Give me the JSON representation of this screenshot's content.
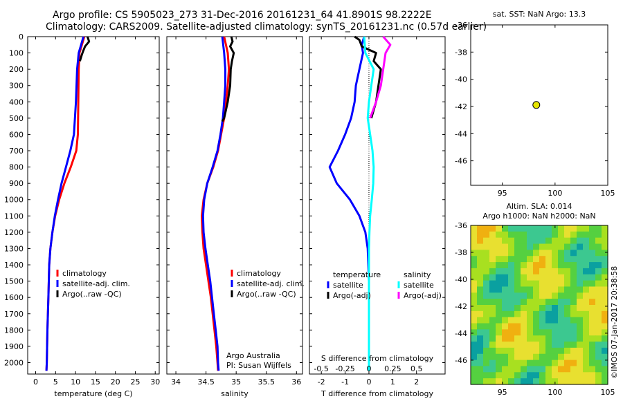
{
  "header": {
    "title_line1": "Argo profile: CS 5905023_273 31-Dec-2016 20161231_64 41.8901S 98.2222E",
    "title_line2": "Climatology: CARS2009. Satellite-adjusted climatology: synTS_20161231.nc (0.57d earlier)"
  },
  "footer": {
    "vertical_stamp": "©IMOS 07-Jan-2017 20:38:58",
    "credit_line1": "Argo Australia",
    "credit_line2": "PI: Susan Wijffels"
  },
  "colors": {
    "climatology": "#ff0000",
    "satellite": "#0000ff",
    "argo": "#000000",
    "satellite_salinity": "#00ffff",
    "argo_salinity": "#ff00ff",
    "float_marker": "#e6e600"
  },
  "chart_data": [
    {
      "id": "temperature",
      "type": "line",
      "xlabel": "temperature (deg C)",
      "ylabel": "",
      "xlim": [
        -2,
        31
      ],
      "ylim": [
        2070,
        0
      ],
      "x_ticks": [
        "0",
        "5",
        "10",
        "15",
        "20",
        "25",
        "30"
      ],
      "x_tick_values": [
        0,
        5,
        10,
        15,
        20,
        25,
        30
      ],
      "y_ticks": [
        "0",
        "100",
        "200",
        "300",
        "400",
        "500",
        "600",
        "700",
        "800",
        "900",
        "1000",
        "1100",
        "1200",
        "1300",
        "1400",
        "1500",
        "1600",
        "1700",
        "1800",
        "1900",
        "2000"
      ],
      "y_tick_values": [
        0,
        100,
        200,
        300,
        400,
        500,
        600,
        700,
        800,
        900,
        1000,
        1100,
        1200,
        1300,
        1400,
        1500,
        1600,
        1700,
        1800,
        1900,
        2000
      ],
      "legend": {
        "placement": "lower-right",
        "entries": [
          "climatology",
          "satellite-adj. clim.",
          "Argo(..raw -QC)"
        ]
      },
      "series": [
        {
          "name": "climatology",
          "color": "#ff0000",
          "points": [
            [
              12.2,
              0
            ],
            [
              11.6,
              50
            ],
            [
              11.0,
              100
            ],
            [
              10.8,
              200
            ],
            [
              10.7,
              400
            ],
            [
              10.6,
              600
            ],
            [
              10.2,
              700
            ],
            [
              8.8,
              800
            ],
            [
              7.2,
              900
            ],
            [
              5.9,
              1000
            ],
            [
              4.9,
              1100
            ],
            [
              4.2,
              1200
            ],
            [
              3.7,
              1300
            ],
            [
              3.4,
              1400
            ],
            [
              3.2,
              1600
            ],
            [
              2.95,
              1800
            ],
            [
              2.8,
              2000
            ],
            [
              2.7,
              2050
            ]
          ]
        },
        {
          "name": "satellite-adj. clim.",
          "color": "#0000ff",
          "points": [
            [
              12.0,
              0
            ],
            [
              11.4,
              50
            ],
            [
              10.8,
              100
            ],
            [
              10.4,
              200
            ],
            [
              10.1,
              400
            ],
            [
              9.6,
              600
            ],
            [
              8.7,
              700
            ],
            [
              7.6,
              800
            ],
            [
              6.5,
              900
            ],
            [
              5.6,
              1000
            ],
            [
              4.8,
              1100
            ],
            [
              4.2,
              1200
            ],
            [
              3.7,
              1300
            ],
            [
              3.4,
              1400
            ],
            [
              3.2,
              1600
            ],
            [
              2.95,
              1800
            ],
            [
              2.8,
              2000
            ],
            [
              2.7,
              2050
            ]
          ]
        },
        {
          "name": "Argo(..raw -QC)",
          "color": "#000000",
          "points": [
            [
              13.0,
              0
            ],
            [
              13.4,
              30
            ],
            [
              12.4,
              60
            ],
            [
              11.9,
              90
            ],
            [
              11.6,
              110
            ],
            [
              11.1,
              150
            ]
          ]
        }
      ]
    },
    {
      "id": "salinity",
      "type": "line",
      "xlabel": "salinity",
      "ylabel": "",
      "xlim": [
        33.85,
        36.1
      ],
      "ylim": [
        2070,
        0
      ],
      "x_ticks": [
        "34",
        "34.5",
        "35",
        "35.5",
        "36"
      ],
      "x_tick_values": [
        34,
        34.5,
        35,
        35.5,
        36
      ],
      "legend": {
        "placement": "lower-right",
        "entries": [
          "climatology",
          "satellite-adj. clim.",
          "Argo(..raw -QC)"
        ]
      },
      "series": [
        {
          "name": "climatology",
          "color": "#ff0000",
          "points": [
            [
              34.8,
              0
            ],
            [
              34.86,
              100
            ],
            [
              34.88,
              200
            ],
            [
              34.86,
              300
            ],
            [
              34.83,
              400
            ],
            [
              34.8,
              500
            ],
            [
              34.75,
              600
            ],
            [
              34.7,
              700
            ],
            [
              34.62,
              800
            ],
            [
              34.52,
              900
            ],
            [
              34.46,
              1000
            ],
            [
              34.43,
              1100
            ],
            [
              34.44,
              1200
            ],
            [
              34.46,
              1300
            ],
            [
              34.5,
              1400
            ],
            [
              34.54,
              1500
            ],
            [
              34.58,
              1600
            ],
            [
              34.61,
              1700
            ],
            [
              34.64,
              1800
            ],
            [
              34.67,
              1900
            ],
            [
              34.69,
              2000
            ],
            [
              34.7,
              2050
            ]
          ]
        },
        {
          "name": "satellite-adj. clim.",
          "color": "#0000ff",
          "points": [
            [
              34.77,
              0
            ],
            [
              34.8,
              100
            ],
            [
              34.82,
              200
            ],
            [
              34.82,
              300
            ],
            [
              34.8,
              400
            ],
            [
              34.78,
              500
            ],
            [
              34.74,
              600
            ],
            [
              34.69,
              700
            ],
            [
              34.61,
              800
            ],
            [
              34.52,
              900
            ],
            [
              34.47,
              1000
            ],
            [
              34.45,
              1100
            ],
            [
              34.46,
              1200
            ],
            [
              34.49,
              1300
            ],
            [
              34.53,
              1400
            ],
            [
              34.57,
              1500
            ],
            [
              34.6,
              1600
            ],
            [
              34.63,
              1700
            ],
            [
              34.66,
              1800
            ],
            [
              34.69,
              1900
            ],
            [
              34.7,
              2000
            ],
            [
              34.71,
              2050
            ]
          ]
        },
        {
          "name": "Argo(..raw -QC)",
          "color": "#000000",
          "points": [
            [
              34.92,
              0
            ],
            [
              34.94,
              30
            ],
            [
              34.9,
              60
            ],
            [
              34.96,
              100
            ],
            [
              34.93,
              150
            ],
            [
              34.91,
              200
            ],
            [
              34.9,
              300
            ],
            [
              34.86,
              400
            ],
            [
              34.8,
              500
            ],
            [
              34.77,
              520
            ]
          ]
        }
      ]
    },
    {
      "id": "difference",
      "type": "line",
      "xlabel": "T difference from climatology",
      "xlabel_top": "S difference from climatology",
      "xlim": [
        -2.5,
        3.2
      ],
      "ylim": [
        2070,
        0
      ],
      "x_ticks": [
        "-2",
        "-1",
        "0",
        "1",
        "2"
      ],
      "x_tick_values": [
        -2,
        -1,
        0,
        1,
        2
      ],
      "x_ticks_top": [
        "-0.5",
        "-0.25",
        "0",
        "0.25",
        "0.5"
      ],
      "x_tick_top_values": [
        -0.5,
        -0.25,
        0,
        0.25,
        0.5
      ],
      "legend": {
        "placement": "lower-right",
        "temperature_title": "temperature",
        "salinity_title": "salinity",
        "temperature_entries": [
          "satellite",
          "Argo(-adj)"
        ],
        "salinity_entries": [
          "satellite",
          "Argo(-adj)"
        ]
      },
      "series": [
        {
          "name": "satellite",
          "color": "#0000ff",
          "points": [
            [
              -0.2,
              0
            ],
            [
              -0.3,
              50
            ],
            [
              -0.25,
              100
            ],
            [
              -0.4,
              200
            ],
            [
              -0.55,
              300
            ],
            [
              -0.6,
              400
            ],
            [
              -0.75,
              500
            ],
            [
              -1.0,
              600
            ],
            [
              -1.3,
              700
            ],
            [
              -1.65,
              800
            ],
            [
              -1.35,
              900
            ],
            [
              -0.8,
              1000
            ],
            [
              -0.4,
              1100
            ],
            [
              -0.15,
              1200
            ],
            [
              -0.05,
              1300
            ],
            [
              0,
              1500
            ],
            [
              0,
              2050
            ]
          ]
        },
        {
          "name": "Argo(-adj)",
          "color": "#000000",
          "points": [
            [
              -0.6,
              0
            ],
            [
              -0.4,
              20
            ],
            [
              -0.3,
              60
            ],
            [
              0.3,
              100
            ],
            [
              0.2,
              150
            ],
            [
              0.5,
              200
            ],
            [
              0.4,
              300
            ],
            [
              0.3,
              400
            ],
            [
              0.1,
              500
            ]
          ]
        },
        {
          "name": "satellite",
          "color": "#00ffff",
          "points": [
            [
              -0.2,
              0
            ],
            [
              -0.15,
              100
            ],
            [
              0.2,
              200
            ],
            [
              0.1,
              300
            ],
            [
              0.0,
              400
            ],
            [
              -0.05,
              500
            ],
            [
              0.05,
              600
            ],
            [
              0.15,
              700
            ],
            [
              0.2,
              800
            ],
            [
              0.18,
              900
            ],
            [
              0.12,
              1000
            ],
            [
              0.05,
              1100
            ],
            [
              0.02,
              1200
            ],
            [
              0,
              1300
            ],
            [
              0,
              2050
            ]
          ]
        },
        {
          "name": "Argo(-adj)",
          "color": "#ff00ff",
          "points": [
            [
              0.6,
              0
            ],
            [
              0.9,
              50
            ],
            [
              0.7,
              100
            ],
            [
              0.65,
              150
            ],
            [
              0.6,
              200
            ],
            [
              0.5,
              300
            ],
            [
              0.3,
              400
            ],
            [
              0.05,
              500
            ]
          ]
        }
      ]
    },
    {
      "id": "location",
      "type": "scatter",
      "title": "sat. SST: NaN Argo: 13.3",
      "xlim": [
        92,
        105
      ],
      "ylim": [
        -47.8,
        -36
      ],
      "x_ticks": [
        "95",
        "100",
        "105"
      ],
      "x_tick_values": [
        95,
        100,
        105
      ],
      "y_ticks": [
        "-36",
        "-38",
        "-40",
        "-42",
        "-44",
        "-46"
      ],
      "y_tick_values": [
        -36,
        -38,
        -40,
        -42,
        -44,
        -46
      ],
      "points": [
        {
          "x": 98.2222,
          "y": -41.8901
        }
      ]
    },
    {
      "id": "sla",
      "type": "heatmap",
      "title_line1": "Altim. SLA: 0.014",
      "title_line2": "Argo h1000: NaN h2000: NaN",
      "xlim": [
        92,
        105
      ],
      "ylim": [
        -47.8,
        -36
      ],
      "x_ticks": [
        "95",
        "100",
        "105"
      ],
      "x_tick_values": [
        95,
        100,
        105
      ],
      "y_ticks": [
        "-36",
        "-38",
        "-40",
        "-42",
        "-44",
        "-46"
      ],
      "y_tick_values": [
        -36,
        -38,
        -40,
        -42,
        -44,
        -46
      ],
      "palette": [
        "#0aa0a0",
        "#3cc890",
        "#55d040",
        "#a8e020",
        "#e8e030",
        "#f0b010"
      ]
    }
  ]
}
